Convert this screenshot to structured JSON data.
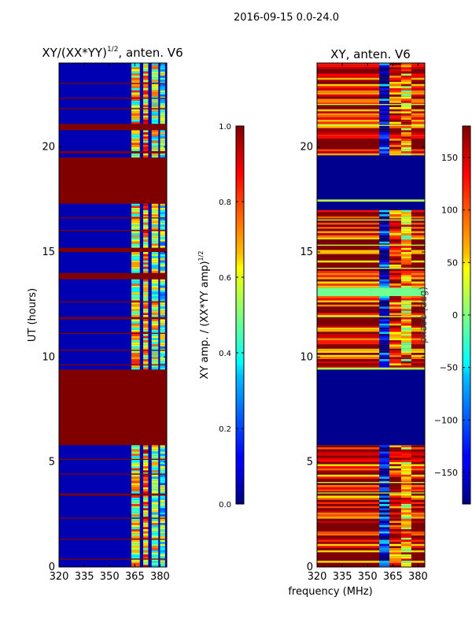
{
  "figure": {
    "suptitle": "2016-09-15 0.0-24.0",
    "shared_xlabel": "frequency (MHz)"
  },
  "chart_data": [
    {
      "type": "heatmap",
      "title_main": "XY/(XX*YY)",
      "title_sup": "1/2",
      "title_rest": ", anten. V6",
      "xlabel": "",
      "ylabel": "UT (hours)",
      "xlim": [
        320,
        384
      ],
      "ylim": [
        0,
        24
      ],
      "x_ticks": [
        320,
        335,
        350,
        365,
        380
      ],
      "y_ticks": [
        0,
        5,
        10,
        15,
        20
      ],
      "colorbar": {
        "label_main": "XY amp. / (XX*YY amp)",
        "label_sup": "1/2",
        "range": [
          0.0,
          1.0
        ],
        "ticks": [
          "0.0",
          "0.2",
          "0.4",
          "0.6",
          "0.8",
          "1.0"
        ],
        "tick_values": [
          0.0,
          0.2,
          0.4,
          0.6,
          0.8,
          1.0
        ]
      },
      "background_value": 0.05,
      "full_rows": [
        {
          "y0": 5.8,
          "y1": 9.4,
          "value": 1.0
        },
        {
          "y0": 17.3,
          "y1": 19.5,
          "value": 1.0
        },
        {
          "y0": 13.7,
          "y1": 14.0,
          "value": 1.0
        },
        {
          "y0": 15.0,
          "y1": 15.2,
          "value": 1.0
        },
        {
          "y0": 20.8,
          "y1": 21.1,
          "value": 1.0
        },
        {
          "y0": 19.7,
          "y1": 19.8,
          "value": 1.0
        },
        {
          "y0": 3.4,
          "y1": 3.5,
          "value": 1.0
        },
        {
          "y0": 2.3,
          "y1": 2.35,
          "value": 1.0
        },
        {
          "y0": 1.3,
          "y1": 1.35,
          "value": 1.0
        },
        {
          "y0": 0.35,
          "y1": 0.4,
          "value": 1.0
        },
        {
          "y0": 4.4,
          "y1": 4.45,
          "value": 1.0
        },
        {
          "y0": 5.1,
          "y1": 5.15,
          "value": 1.0
        },
        {
          "y0": 9.6,
          "y1": 9.65,
          "value": 1.0
        },
        {
          "y0": 10.3,
          "y1": 10.35,
          "value": 1.0
        },
        {
          "y0": 11.1,
          "y1": 11.15,
          "value": 1.0
        },
        {
          "y0": 11.8,
          "y1": 11.9,
          "value": 1.0
        },
        {
          "y0": 12.6,
          "y1": 12.65,
          "value": 1.0
        },
        {
          "y0": 16.0,
          "y1": 16.05,
          "value": 1.0
        },
        {
          "y0": 16.6,
          "y1": 16.65,
          "value": 1.0
        },
        {
          "y0": 21.8,
          "y1": 21.85,
          "value": 1.0
        },
        {
          "y0": 22.3,
          "y1": 22.35,
          "value": 1.0
        },
        {
          "y0": 23.0,
          "y1": 23.05,
          "value": 1.0
        }
      ],
      "active_bands": [
        {
          "x0": 363,
          "x1": 368,
          "value": 0.6
        },
        {
          "x0": 370,
          "x1": 373,
          "value": 0.7
        },
        {
          "x0": 375,
          "x1": 379,
          "value": 0.55
        },
        {
          "x0": 380,
          "x1": 383,
          "value": 0.45
        }
      ]
    },
    {
      "type": "heatmap",
      "title_main": "XY, anten. V6",
      "xlabel": "frequency (MHz)",
      "ylabel": "phase (deg)",
      "xlim": [
        320,
        384
      ],
      "ylim": [
        0,
        24
      ],
      "x_ticks": [
        320,
        335,
        350,
        365,
        380
      ],
      "y_ticks": [
        0,
        5,
        10,
        15,
        20
      ],
      "colorbar": {
        "label_main": "phase (deg)",
        "range": [
          -180,
          180
        ],
        "ticks": [
          "−150",
          "−100",
          "−50",
          "0",
          "50",
          "100",
          "150"
        ],
        "tick_values": [
          -150,
          -100,
          -50,
          0,
          50,
          100,
          150
        ]
      },
      "background_value": -170,
      "full_rows": [
        {
          "y0": 5.8,
          "y1": 9.4,
          "value": -175
        },
        {
          "y0": 17.0,
          "y1": 19.6,
          "value": -175
        },
        {
          "y0": 12.9,
          "y1": 13.3,
          "value": -5
        },
        {
          "y0": 17.4,
          "y1": 17.5,
          "value": 20
        },
        {
          "y0": 16.5,
          "y1": 16.55,
          "value": 20
        },
        {
          "y0": 15.3,
          "y1": 15.35,
          "value": 20
        },
        {
          "y0": 14.2,
          "y1": 14.25,
          "value": 20
        },
        {
          "y0": 9.4,
          "y1": 9.5,
          "value": 20
        },
        {
          "y0": 11.9,
          "y1": 11.95,
          "value": 20
        },
        {
          "y0": 3.5,
          "y1": 3.55,
          "value": 20
        },
        {
          "y0": 4.0,
          "y1": 4.05,
          "value": 20
        },
        {
          "y0": 21.0,
          "y1": 21.05,
          "value": 20
        },
        {
          "y0": 22.0,
          "y1": 22.05,
          "value": 20
        }
      ],
      "active_bands": [
        {
          "x0": 320,
          "x1": 384,
          "value": 150
        },
        {
          "x0": 357,
          "x1": 363,
          "value": -150
        },
        {
          "x0": 363,
          "x1": 370,
          "value": 130
        },
        {
          "x0": 370,
          "x1": 376,
          "value": 80
        }
      ]
    }
  ]
}
